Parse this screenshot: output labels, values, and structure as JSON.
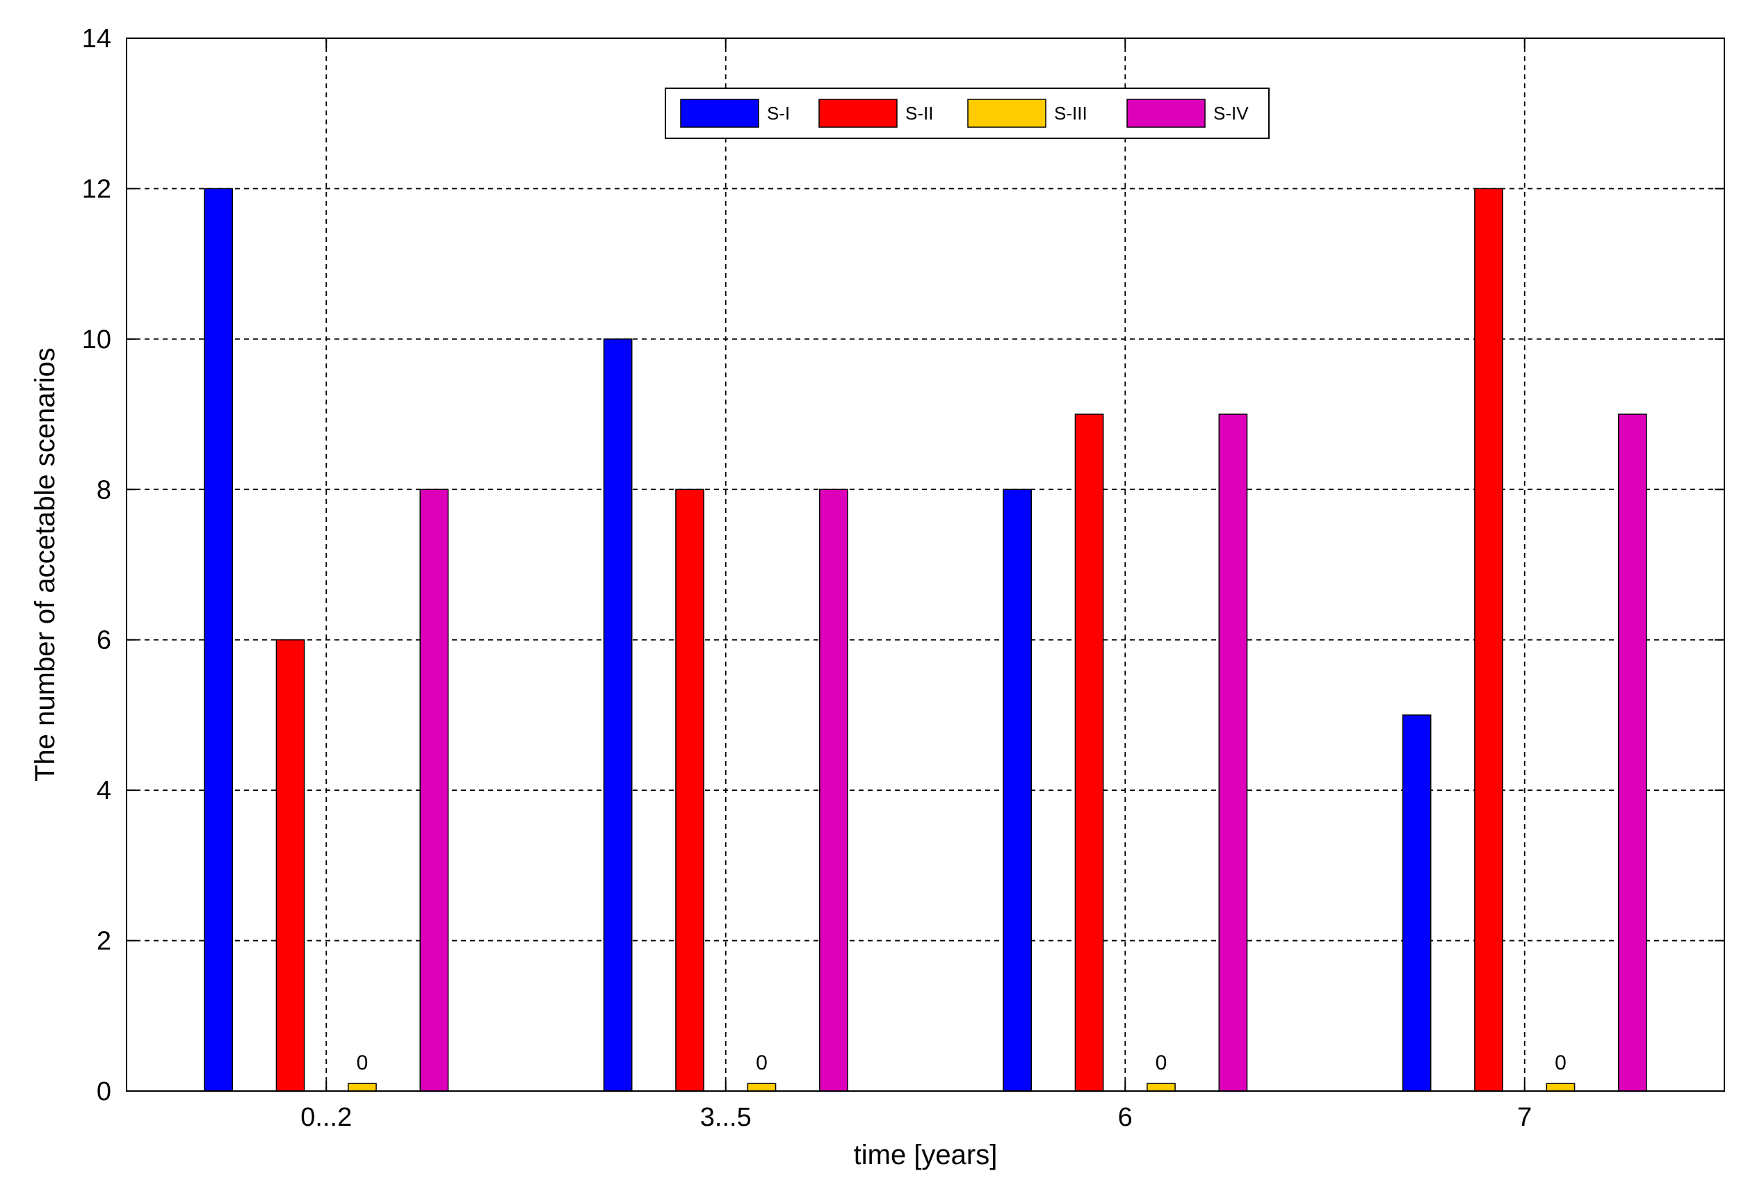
{
  "chart_data": {
    "type": "bar",
    "title": "",
    "xlabel": "time [years]",
    "ylabel": "The number of accetable scenarios",
    "categories": [
      "0...2",
      "3...5",
      "6",
      "7"
    ],
    "series": [
      {
        "name": "S-I",
        "color": "#0000ff",
        "values": [
          12,
          10,
          8,
          5
        ]
      },
      {
        "name": "S-II",
        "color": "#ff0000",
        "values": [
          6,
          8,
          9,
          12
        ]
      },
      {
        "name": "S-III",
        "color": "#ffcc00",
        "values": [
          0,
          0,
          0,
          0
        ]
      },
      {
        "name": "S-IV",
        "color": "#dd00bb",
        "values": [
          8,
          8,
          9,
          9
        ]
      }
    ],
    "data_labels": [
      "0",
      "0",
      "0",
      "0"
    ],
    "ylim": [
      0,
      14
    ],
    "yticks": [
      "0",
      "2",
      "4",
      "6",
      "8",
      "10",
      "12",
      "14"
    ],
    "grid": true,
    "legend_position": "top-center",
    "legend_orientation": "horizontal"
  }
}
